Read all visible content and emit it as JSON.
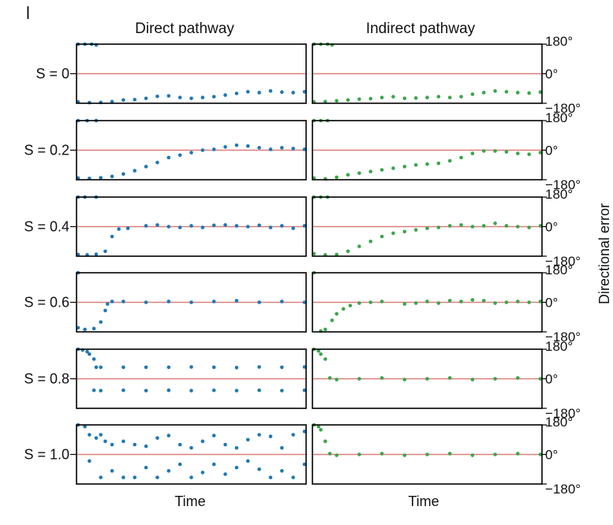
{
  "figure": {
    "panel_letter": "l",
    "colors": {
      "direct": "#1f77b4",
      "indirect": "#3aa54a",
      "reference_line": "#d9807a",
      "frame": "#000000"
    }
  },
  "chart_data": {
    "type": "scatter",
    "grid": false,
    "columns": [
      {
        "id": "direct",
        "title": "Direct pathway",
        "xlabel": "Time"
      },
      {
        "id": "indirect",
        "title": "Indirect pathway",
        "xlabel": "Time"
      }
    ],
    "ylabel": "Directional error",
    "ylim": [
      -180,
      180
    ],
    "yticks": [
      "180°",
      "0°",
      "−180°"
    ],
    "rows": [
      {
        "label": "S = 0",
        "direct": [
          [
            0,
            180
          ],
          [
            3,
            180
          ],
          [
            6,
            180
          ],
          [
            8,
            175
          ],
          [
            0,
            -172
          ],
          [
            5,
            -176
          ],
          [
            10,
            -175
          ],
          [
            15,
            -170
          ],
          [
            20,
            -160
          ],
          [
            25,
            -158
          ],
          [
            30,
            -150
          ],
          [
            35,
            -138
          ],
          [
            40,
            -135
          ],
          [
            45,
            -145
          ],
          [
            50,
            -150
          ],
          [
            55,
            -145
          ],
          [
            60,
            -140
          ],
          [
            65,
            -130
          ],
          [
            70,
            -120
          ],
          [
            75,
            -110
          ],
          [
            80,
            -115
          ],
          [
            85,
            -105
          ],
          [
            90,
            -112
          ],
          [
            95,
            -115
          ],
          [
            100,
            -110
          ]
        ],
        "indirect": [
          [
            0,
            180
          ],
          [
            3,
            180
          ],
          [
            6,
            180
          ],
          [
            8,
            175
          ],
          [
            0,
            -172
          ],
          [
            5,
            -170
          ],
          [
            10,
            -165
          ],
          [
            15,
            -160
          ],
          [
            20,
            -155
          ],
          [
            25,
            -152
          ],
          [
            30,
            -145
          ],
          [
            35,
            -140
          ],
          [
            40,
            -150
          ],
          [
            45,
            -148
          ],
          [
            50,
            -145
          ],
          [
            55,
            -140
          ],
          [
            60,
            -145
          ],
          [
            65,
            -140
          ],
          [
            70,
            -125
          ],
          [
            75,
            -115
          ],
          [
            80,
            -105
          ],
          [
            85,
            -110
          ],
          [
            90,
            -115
          ],
          [
            95,
            -118
          ],
          [
            100,
            -112
          ]
        ]
      },
      {
        "label": "S = 0.2",
        "direct": [
          [
            0,
            180
          ],
          [
            4,
            180
          ],
          [
            8,
            180
          ],
          [
            0,
            -170
          ],
          [
            5,
            -172
          ],
          [
            10,
            -168
          ],
          [
            15,
            -160
          ],
          [
            20,
            -145
          ],
          [
            25,
            -125
          ],
          [
            30,
            -100
          ],
          [
            35,
            -75
          ],
          [
            40,
            -45
          ],
          [
            45,
            -30
          ],
          [
            50,
            -15
          ],
          [
            55,
            0
          ],
          [
            60,
            5
          ],
          [
            65,
            20
          ],
          [
            70,
            30
          ],
          [
            75,
            25
          ],
          [
            80,
            15
          ],
          [
            85,
            5
          ],
          [
            90,
            15
          ],
          [
            95,
            10
          ],
          [
            100,
            5
          ]
        ],
        "indirect": [
          [
            0,
            180
          ],
          [
            3,
            180
          ],
          [
            6,
            180
          ],
          [
            0,
            -170
          ],
          [
            5,
            -175
          ],
          [
            10,
            -165
          ],
          [
            15,
            -150
          ],
          [
            20,
            -140
          ],
          [
            25,
            -130
          ],
          [
            30,
            -120
          ],
          [
            35,
            -110
          ],
          [
            40,
            -100
          ],
          [
            45,
            -90
          ],
          [
            50,
            -85
          ],
          [
            55,
            -80
          ],
          [
            60,
            -65
          ],
          [
            65,
            -45
          ],
          [
            70,
            -20
          ],
          [
            75,
            -5
          ],
          [
            80,
            -5
          ],
          [
            85,
            -10
          ],
          [
            90,
            -20
          ],
          [
            95,
            -25
          ],
          [
            100,
            -15
          ]
        ]
      },
      {
        "label": "S = 0.4",
        "direct": [
          [
            0,
            180
          ],
          [
            3,
            180
          ],
          [
            8,
            180
          ],
          [
            0,
            -170
          ],
          [
            4,
            -172
          ],
          [
            8,
            -168
          ],
          [
            12,
            -150
          ],
          [
            15,
            -60
          ],
          [
            18,
            -15
          ],
          [
            22,
            -10
          ],
          [
            30,
            5
          ],
          [
            35,
            10
          ],
          [
            40,
            0
          ],
          [
            45,
            -5
          ],
          [
            50,
            5
          ],
          [
            55,
            -5
          ],
          [
            60,
            8
          ],
          [
            65,
            10
          ],
          [
            70,
            5
          ],
          [
            75,
            0
          ],
          [
            80,
            8
          ],
          [
            85,
            -5
          ],
          [
            90,
            5
          ],
          [
            95,
            -10
          ],
          [
            100,
            5
          ]
        ],
        "indirect": [
          [
            0,
            180
          ],
          [
            3,
            180
          ],
          [
            6,
            180
          ],
          [
            0,
            -165
          ],
          [
            5,
            -172
          ],
          [
            10,
            -170
          ],
          [
            15,
            -150
          ],
          [
            20,
            -120
          ],
          [
            25,
            -90
          ],
          [
            30,
            -60
          ],
          [
            35,
            -40
          ],
          [
            40,
            -30
          ],
          [
            45,
            -20
          ],
          [
            50,
            -10
          ],
          [
            55,
            -5
          ],
          [
            60,
            5
          ],
          [
            65,
            10
          ],
          [
            70,
            0
          ],
          [
            75,
            5
          ],
          [
            80,
            20
          ],
          [
            85,
            5
          ],
          [
            90,
            0
          ],
          [
            95,
            -5
          ],
          [
            100,
            5
          ]
        ]
      },
      {
        "label": "S = 0.6",
        "direct": [
          [
            0,
            180
          ],
          [
            0,
            -155
          ],
          [
            3,
            -165
          ],
          [
            7,
            -160
          ],
          [
            10,
            -120
          ],
          [
            12,
            -50
          ],
          [
            13,
            -10
          ],
          [
            15,
            5
          ],
          [
            20,
            5
          ],
          [
            30,
            0
          ],
          [
            40,
            5
          ],
          [
            50,
            0
          ],
          [
            60,
            5
          ],
          [
            70,
            10
          ],
          [
            80,
            0
          ],
          [
            90,
            5
          ],
          [
            100,
            0
          ]
        ],
        "indirect": [
          [
            0,
            180
          ],
          [
            3,
            -175
          ],
          [
            5,
            -165
          ],
          [
            8,
            -110
          ],
          [
            10,
            -70
          ],
          [
            13,
            -40
          ],
          [
            16,
            -20
          ],
          [
            20,
            -5
          ],
          [
            25,
            0
          ],
          [
            30,
            5
          ],
          [
            40,
            -10
          ],
          [
            45,
            -5
          ],
          [
            50,
            5
          ],
          [
            55,
            -5
          ],
          [
            60,
            10
          ],
          [
            65,
            5
          ],
          [
            70,
            15
          ],
          [
            75,
            10
          ],
          [
            80,
            -5
          ],
          [
            85,
            0
          ],
          [
            90,
            5
          ],
          [
            95,
            0
          ],
          [
            100,
            5
          ]
        ]
      },
      {
        "label": "S = 0.8",
        "direct": [
          [
            0,
            180
          ],
          [
            2,
            175
          ],
          [
            4,
            165
          ],
          [
            5,
            150
          ],
          [
            7,
            120
          ],
          [
            8,
            70
          ],
          [
            10,
            70
          ],
          [
            20,
            70
          ],
          [
            30,
            70
          ],
          [
            40,
            70
          ],
          [
            50,
            72
          ],
          [
            60,
            70
          ],
          [
            70,
            68
          ],
          [
            80,
            72
          ],
          [
            90,
            70
          ],
          [
            100,
            72
          ],
          [
            7,
            -70
          ],
          [
            10,
            -72
          ],
          [
            20,
            -70
          ],
          [
            30,
            -72
          ],
          [
            40,
            -70
          ],
          [
            50,
            -72
          ],
          [
            60,
            -70
          ],
          [
            70,
            -72
          ],
          [
            80,
            -70
          ],
          [
            90,
            -72
          ],
          [
            100,
            -70
          ]
        ],
        "indirect": [
          [
            0,
            180
          ],
          [
            2,
            170
          ],
          [
            3,
            150
          ],
          [
            5,
            120
          ],
          [
            7,
            5
          ],
          [
            10,
            -5
          ],
          [
            20,
            0
          ],
          [
            30,
            5
          ],
          [
            40,
            -5
          ],
          [
            50,
            0
          ],
          [
            60,
            5
          ],
          [
            70,
            -5
          ],
          [
            80,
            0
          ],
          [
            90,
            5
          ],
          [
            100,
            0
          ]
        ]
      },
      {
        "label": "S = 1.0",
        "direct": [
          [
            0,
            180
          ],
          [
            3,
            170
          ],
          [
            5,
            120
          ],
          [
            8,
            100
          ],
          [
            10,
            120
          ],
          [
            12,
            80
          ],
          [
            15,
            60
          ],
          [
            20,
            80
          ],
          [
            25,
            60
          ],
          [
            30,
            50
          ],
          [
            35,
            100
          ],
          [
            40,
            115
          ],
          [
            45,
            60
          ],
          [
            50,
            40
          ],
          [
            55,
            80
          ],
          [
            60,
            115
          ],
          [
            65,
            60
          ],
          [
            70,
            40
          ],
          [
            75,
            90
          ],
          [
            80,
            120
          ],
          [
            85,
            110
          ],
          [
            90,
            40
          ],
          [
            95,
            120
          ],
          [
            100,
            140
          ],
          [
            5,
            -40
          ],
          [
            10,
            -140
          ],
          [
            15,
            -100
          ],
          [
            20,
            -140
          ],
          [
            25,
            -140
          ],
          [
            30,
            -80
          ],
          [
            35,
            -140
          ],
          [
            40,
            -100
          ],
          [
            45,
            -60
          ],
          [
            50,
            -140
          ],
          [
            55,
            -110
          ],
          [
            60,
            -60
          ],
          [
            65,
            -120
          ],
          [
            70,
            -80
          ],
          [
            75,
            -40
          ],
          [
            80,
            -90
          ],
          [
            85,
            -140
          ],
          [
            90,
            -100
          ],
          [
            95,
            -140
          ],
          [
            100,
            -60
          ]
        ],
        "indirect": [
          [
            0,
            180
          ],
          [
            2,
            170
          ],
          [
            3,
            150
          ],
          [
            5,
            80
          ],
          [
            7,
            5
          ],
          [
            10,
            -5
          ],
          [
            20,
            0
          ],
          [
            30,
            5
          ],
          [
            40,
            -5
          ],
          [
            50,
            0
          ],
          [
            60,
            5
          ],
          [
            70,
            -5
          ],
          [
            80,
            0
          ],
          [
            90,
            5
          ],
          [
            100,
            0
          ]
        ]
      }
    ]
  }
}
